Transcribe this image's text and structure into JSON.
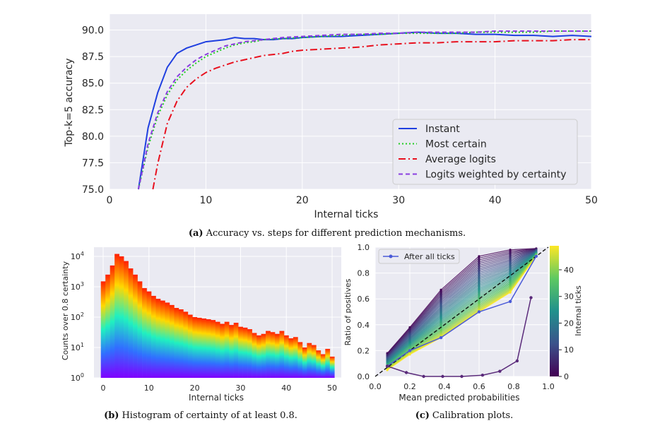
{
  "captions": {
    "a": {
      "label": "(a)",
      "text": "Accuracy vs. steps for different prediction mechanisms."
    },
    "b": {
      "label": "(b)",
      "text": "Histogram of certainty of at least 0.8."
    },
    "c": {
      "label": "(c)",
      "text": "Calibration plots."
    }
  },
  "chart_data": [
    {
      "id": "a",
      "type": "line",
      "xlabel": "Internal ticks",
      "ylabel": "Top-k=5 accuracy",
      "xlim": [
        0,
        50
      ],
      "ylim": [
        75,
        91.5
      ],
      "xticks": [
        0,
        10,
        20,
        30,
        40,
        50
      ],
      "yticks": [
        "75.0",
        "77.5",
        "80.0",
        "82.5",
        "85.0",
        "87.5",
        "90.0"
      ],
      "grid": true,
      "legend_position": "lower-right",
      "series": [
        {
          "name": "Instant",
          "color": "#1f3fe0",
          "style": "solid",
          "x": [
            3,
            4,
            5,
            6,
            7,
            8,
            9,
            10,
            11,
            12,
            13,
            14,
            15,
            16,
            17,
            18,
            19,
            20,
            22,
            24,
            26,
            28,
            30,
            32,
            34,
            36,
            38,
            40,
            42,
            44,
            46,
            48,
            50
          ],
          "y": [
            75.0,
            80.8,
            84.1,
            86.5,
            87.8,
            88.3,
            88.6,
            88.9,
            89.0,
            89.1,
            89.3,
            89.2,
            89.2,
            89.1,
            89.1,
            89.2,
            89.2,
            89.3,
            89.4,
            89.4,
            89.5,
            89.6,
            89.7,
            89.8,
            89.7,
            89.7,
            89.6,
            89.6,
            89.5,
            89.5,
            89.4,
            89.5,
            89.4
          ]
        },
        {
          "name": "Most certain",
          "color": "#22cc22",
          "style": "dotted",
          "x": [
            3,
            4,
            5,
            6,
            7,
            8,
            9,
            10,
            11,
            12,
            13,
            14,
            15,
            16,
            18,
            20,
            22,
            24,
            26,
            28,
            30,
            32,
            34,
            36,
            38,
            40,
            42,
            44,
            46,
            48,
            50
          ],
          "y": [
            75.0,
            79.0,
            81.9,
            83.9,
            85.3,
            86.2,
            86.9,
            87.5,
            87.9,
            88.3,
            88.6,
            88.8,
            88.9,
            89.1,
            89.2,
            89.3,
            89.4,
            89.5,
            89.6,
            89.6,
            89.7,
            89.7,
            89.7,
            89.7,
            89.8,
            89.8,
            89.8,
            89.8,
            89.9,
            89.9,
            89.9
          ]
        },
        {
          "name": "Average logits",
          "color": "#e8101e",
          "style": "dashdot",
          "x": [
            4.5,
            5,
            6,
            7,
            8,
            9,
            10,
            11,
            12,
            13,
            14,
            15,
            16,
            17,
            18,
            19,
            20,
            22,
            24,
            26,
            28,
            30,
            32,
            34,
            36,
            38,
            40,
            42,
            44,
            46,
            48,
            50
          ],
          "y": [
            75.0,
            77.4,
            81.2,
            83.3,
            84.6,
            85.4,
            86.0,
            86.4,
            86.7,
            87.0,
            87.2,
            87.4,
            87.6,
            87.7,
            87.8,
            88.0,
            88.1,
            88.2,
            88.3,
            88.4,
            88.6,
            88.7,
            88.8,
            88.8,
            88.9,
            88.9,
            88.9,
            89.0,
            89.0,
            89.0,
            89.1,
            89.1
          ]
        },
        {
          "name": "Logits weighted by certainty",
          "color": "#8a3ee0",
          "style": "dashed",
          "x": [
            3,
            4,
            5,
            6,
            7,
            8,
            9,
            10,
            11,
            12,
            13,
            14,
            15,
            16,
            18,
            20,
            22,
            24,
            26,
            28,
            30,
            32,
            34,
            36,
            38,
            40,
            42,
            44,
            46,
            48,
            50
          ],
          "y": [
            75.0,
            79.3,
            82.2,
            84.2,
            85.6,
            86.5,
            87.2,
            87.7,
            88.1,
            88.5,
            88.7,
            88.9,
            89.0,
            89.1,
            89.3,
            89.4,
            89.5,
            89.6,
            89.6,
            89.7,
            89.7,
            89.8,
            89.8,
            89.8,
            89.8,
            89.9,
            89.9,
            89.9,
            89.9,
            89.9,
            89.9
          ]
        }
      ]
    },
    {
      "id": "b",
      "type": "bar",
      "xlabel": "Internal ticks",
      "ylabel": "Counts over 0.8 certainty",
      "yscale": "log",
      "xlim": [
        -2,
        52
      ],
      "ylim": [
        1,
        20000
      ],
      "xticks": [
        0,
        10,
        20,
        30,
        40,
        50
      ],
      "yticks": [
        "10^0",
        "10^1",
        "10^2",
        "10^3",
        "10^4"
      ],
      "grid": true,
      "categories": [
        0,
        1,
        2,
        3,
        4,
        5,
        6,
        7,
        8,
        9,
        10,
        11,
        12,
        13,
        14,
        15,
        16,
        17,
        18,
        19,
        20,
        21,
        22,
        23,
        24,
        25,
        26,
        27,
        28,
        29,
        30,
        31,
        32,
        33,
        34,
        35,
        36,
        37,
        38,
        39,
        40,
        41,
        42,
        43,
        44,
        45,
        46,
        47,
        48,
        49,
        50
      ],
      "values": [
        1500,
        2500,
        5000,
        12000,
        10000,
        7000,
        4000,
        2500,
        1500,
        900,
        700,
        500,
        400,
        350,
        300,
        250,
        200,
        180,
        150,
        120,
        100,
        95,
        90,
        85,
        80,
        70,
        60,
        70,
        55,
        65,
        48,
        45,
        40,
        30,
        25,
        28,
        35,
        32,
        28,
        35,
        25,
        20,
        22,
        15,
        10,
        14,
        12,
        8,
        6,
        9,
        5
      ]
    },
    {
      "id": "c",
      "type": "line",
      "xlabel": "Mean predicted probabilities",
      "ylabel": "Ratio of positives",
      "xlim": [
        0,
        1
      ],
      "ylim": [
        0,
        1
      ],
      "xticks": [
        "0.0",
        "0.2",
        "0.4",
        "0.6",
        "0.8",
        "1.0"
      ],
      "yticks": [
        "0.0",
        "0.2",
        "0.4",
        "0.6",
        "0.8",
        "1.0"
      ],
      "grid": true,
      "legend_position": "upper-left",
      "colorbar": {
        "label": "Internal ticks",
        "ticks": [
          0,
          10,
          20,
          30,
          40
        ],
        "range": [
          0,
          49
        ],
        "colormap": "viridis"
      },
      "reference_line": {
        "x": [
          0,
          1
        ],
        "y": [
          0,
          1
        ],
        "style": "dashed"
      },
      "series": [
        {
          "name": "After all ticks",
          "color": "#4a5ad8",
          "x": [
            0.07,
            0.2,
            0.38,
            0.6,
            0.78,
            0.93
          ],
          "y": [
            0.08,
            0.2,
            0.3,
            0.5,
            0.58,
            0.93
          ]
        },
        {
          "tick": 0,
          "color": "#5a2a7a",
          "x": [
            0.07,
            0.18,
            0.28,
            0.39,
            0.5,
            0.62,
            0.72,
            0.82,
            0.9
          ],
          "y": [
            0.08,
            0.03,
            0.0,
            0.0,
            0.0,
            0.01,
            0.04,
            0.12,
            0.61
          ]
        }
      ],
      "bundle_x": [
        0.07,
        0.2,
        0.38,
        0.6,
        0.78,
        0.93
      ],
      "bundle_top": [
        0.18,
        0.38,
        0.67,
        0.93,
        0.98,
        0.99
      ],
      "bundle_bottom": [
        0.05,
        0.17,
        0.3,
        0.5,
        0.65,
        0.93
      ]
    }
  ]
}
